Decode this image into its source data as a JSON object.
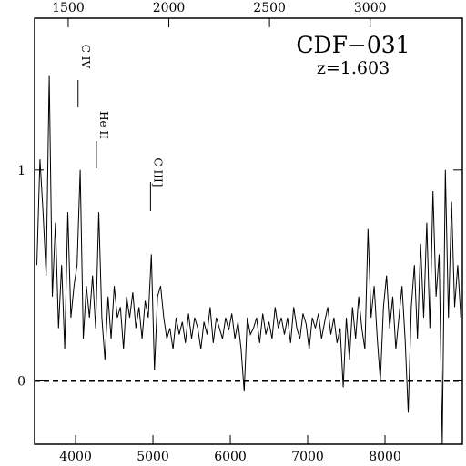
{
  "chart_data": {
    "type": "line",
    "title": "CDF−031",
    "subtitle": "z=1.603",
    "x": [
      3500,
      3540,
      3580,
      3620,
      3660,
      3700,
      3740,
      3780,
      3820,
      3860,
      3900,
      3940,
      3980,
      4020,
      4060,
      4100,
      4140,
      4180,
      4220,
      4260,
      4300,
      4340,
      4380,
      4420,
      4460,
      4500,
      4540,
      4580,
      4620,
      4660,
      4700,
      4740,
      4780,
      4820,
      4860,
      4900,
      4940,
      4980,
      5020,
      5060,
      5100,
      5140,
      5180,
      5220,
      5260,
      5300,
      5340,
      5380,
      5420,
      5460,
      5500,
      5540,
      5580,
      5620,
      5660,
      5700,
      5740,
      5780,
      5820,
      5860,
      5900,
      5940,
      5980,
      6020,
      6060,
      6100,
      6140,
      6180,
      6220,
      6260,
      6300,
      6340,
      6380,
      6420,
      6460,
      6500,
      6540,
      6580,
      6620,
      6660,
      6700,
      6740,
      6780,
      6820,
      6860,
      6900,
      6940,
      6980,
      7020,
      7060,
      7100,
      7140,
      7180,
      7220,
      7260,
      7300,
      7340,
      7380,
      7420,
      7460,
      7500,
      7540,
      7580,
      7620,
      7660,
      7700,
      7740,
      7780,
      7820,
      7860,
      7900,
      7940,
      7980,
      8020,
      8060,
      8100,
      8140,
      8180,
      8220,
      8260,
      8300,
      8340,
      8380,
      8420,
      8460,
      8500,
      8540,
      8580,
      8620,
      8660,
      8700,
      8740,
      8780,
      8820,
      8860,
      8900,
      8940,
      8980
    ],
    "series": [
      {
        "color": "#000000",
        "values": [
          0.55,
          1.05,
          0.8,
          0.5,
          1.45,
          0.4,
          0.75,
          0.25,
          0.55,
          0.15,
          0.8,
          0.3,
          0.45,
          0.55,
          1.0,
          0.2,
          0.45,
          0.3,
          0.5,
          0.25,
          0.8,
          0.3,
          0.1,
          0.4,
          0.2,
          0.45,
          0.3,
          0.35,
          0.15,
          0.4,
          0.3,
          0.42,
          0.25,
          0.35,
          0.2,
          0.38,
          0.3,
          0.6,
          0.05,
          0.4,
          0.45,
          0.3,
          0.2,
          0.25,
          0.15,
          0.3,
          0.22,
          0.28,
          0.18,
          0.32,
          0.2,
          0.3,
          0.25,
          0.15,
          0.28,
          0.22,
          0.35,
          0.18,
          0.3,
          0.25,
          0.2,
          0.3,
          0.24,
          0.32,
          0.2,
          0.28,
          0.15,
          -0.05,
          0.3,
          0.22,
          0.25,
          0.3,
          0.18,
          0.32,
          0.22,
          0.28,
          0.2,
          0.35,
          0.25,
          0.3,
          0.22,
          0.3,
          0.18,
          0.35,
          0.25,
          0.2,
          0.32,
          0.27,
          0.15,
          0.3,
          0.25,
          0.32,
          0.2,
          0.28,
          0.35,
          0.22,
          0.3,
          0.18,
          0.25,
          -0.03,
          0.3,
          0.1,
          0.35,
          0.2,
          0.4,
          0.25,
          0.15,
          0.72,
          0.3,
          0.45,
          0.2,
          0.0,
          0.35,
          0.5,
          0.25,
          0.4,
          0.15,
          0.3,
          0.45,
          0.2,
          -0.15,
          0.35,
          0.55,
          0.2,
          0.65,
          0.3,
          0.75,
          0.25,
          0.9,
          0.4,
          0.6,
          -0.3,
          1.0,
          0.3,
          0.85,
          0.35,
          0.55,
          0.3
        ]
      }
    ],
    "xlim": [
      3470,
      9000
    ],
    "xticks": [
      4000,
      5000,
      6000,
      7000,
      8000
    ],
    "x2lim": [
      1333,
      3458
    ],
    "x2ticks": [
      1500,
      2000,
      2500,
      3000
    ],
    "ylim": [
      -0.3,
      1.72
    ],
    "yticks": [
      0,
      1
    ],
    "reference_line": 0,
    "annotations": [
      {
        "label": "C IV",
        "x": 4032
      },
      {
        "label": "He II",
        "x": 4269
      },
      {
        "label": "C III]",
        "x": 4969
      }
    ]
  }
}
